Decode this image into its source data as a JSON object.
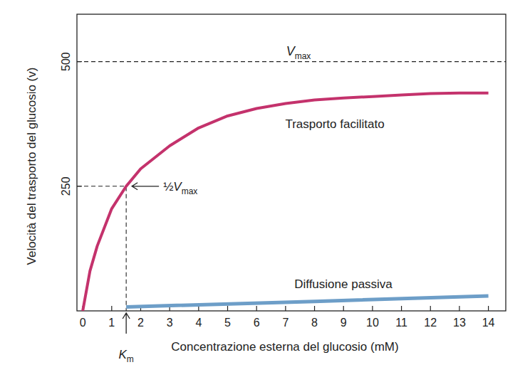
{
  "chart_data": {
    "type": "line",
    "x_label": "Concentrazione esterna del glucosio (mM)",
    "y_label": "Velocità del trasporto del glucosio (v)",
    "xlim": [
      -0.2,
      14.6
    ],
    "ylim": [
      0,
      595
    ],
    "xticks": [
      0,
      1,
      2,
      3,
      4,
      5,
      6,
      7,
      8,
      9,
      10,
      11,
      12,
      13,
      14
    ],
    "yticks": [
      250,
      500
    ],
    "series": [
      {
        "name": "Trasporto facilitato",
        "color": "#c4326c",
        "x": [
          0,
          0.25,
          0.5,
          1,
          1.5,
          2,
          3,
          4,
          5,
          6,
          7,
          8,
          9,
          10,
          11,
          12,
          13,
          14
        ],
        "values": [
          0,
          80,
          130,
          205,
          250,
          285,
          331,
          367,
          391,
          406,
          416,
          423,
          427,
          430,
          433,
          436,
          437,
          437
        ]
      },
      {
        "name": "Diffusione passiva",
        "color": "#6d9ec8",
        "x": [
          1.5,
          8,
          14
        ],
        "values": [
          8,
          19,
          30
        ]
      }
    ],
    "vmax": 500,
    "vmax_label": "Vmax",
    "half_vmax": 250,
    "half_vmax_label": "½Vmax",
    "km": 1.5,
    "km_label": "Km"
  }
}
